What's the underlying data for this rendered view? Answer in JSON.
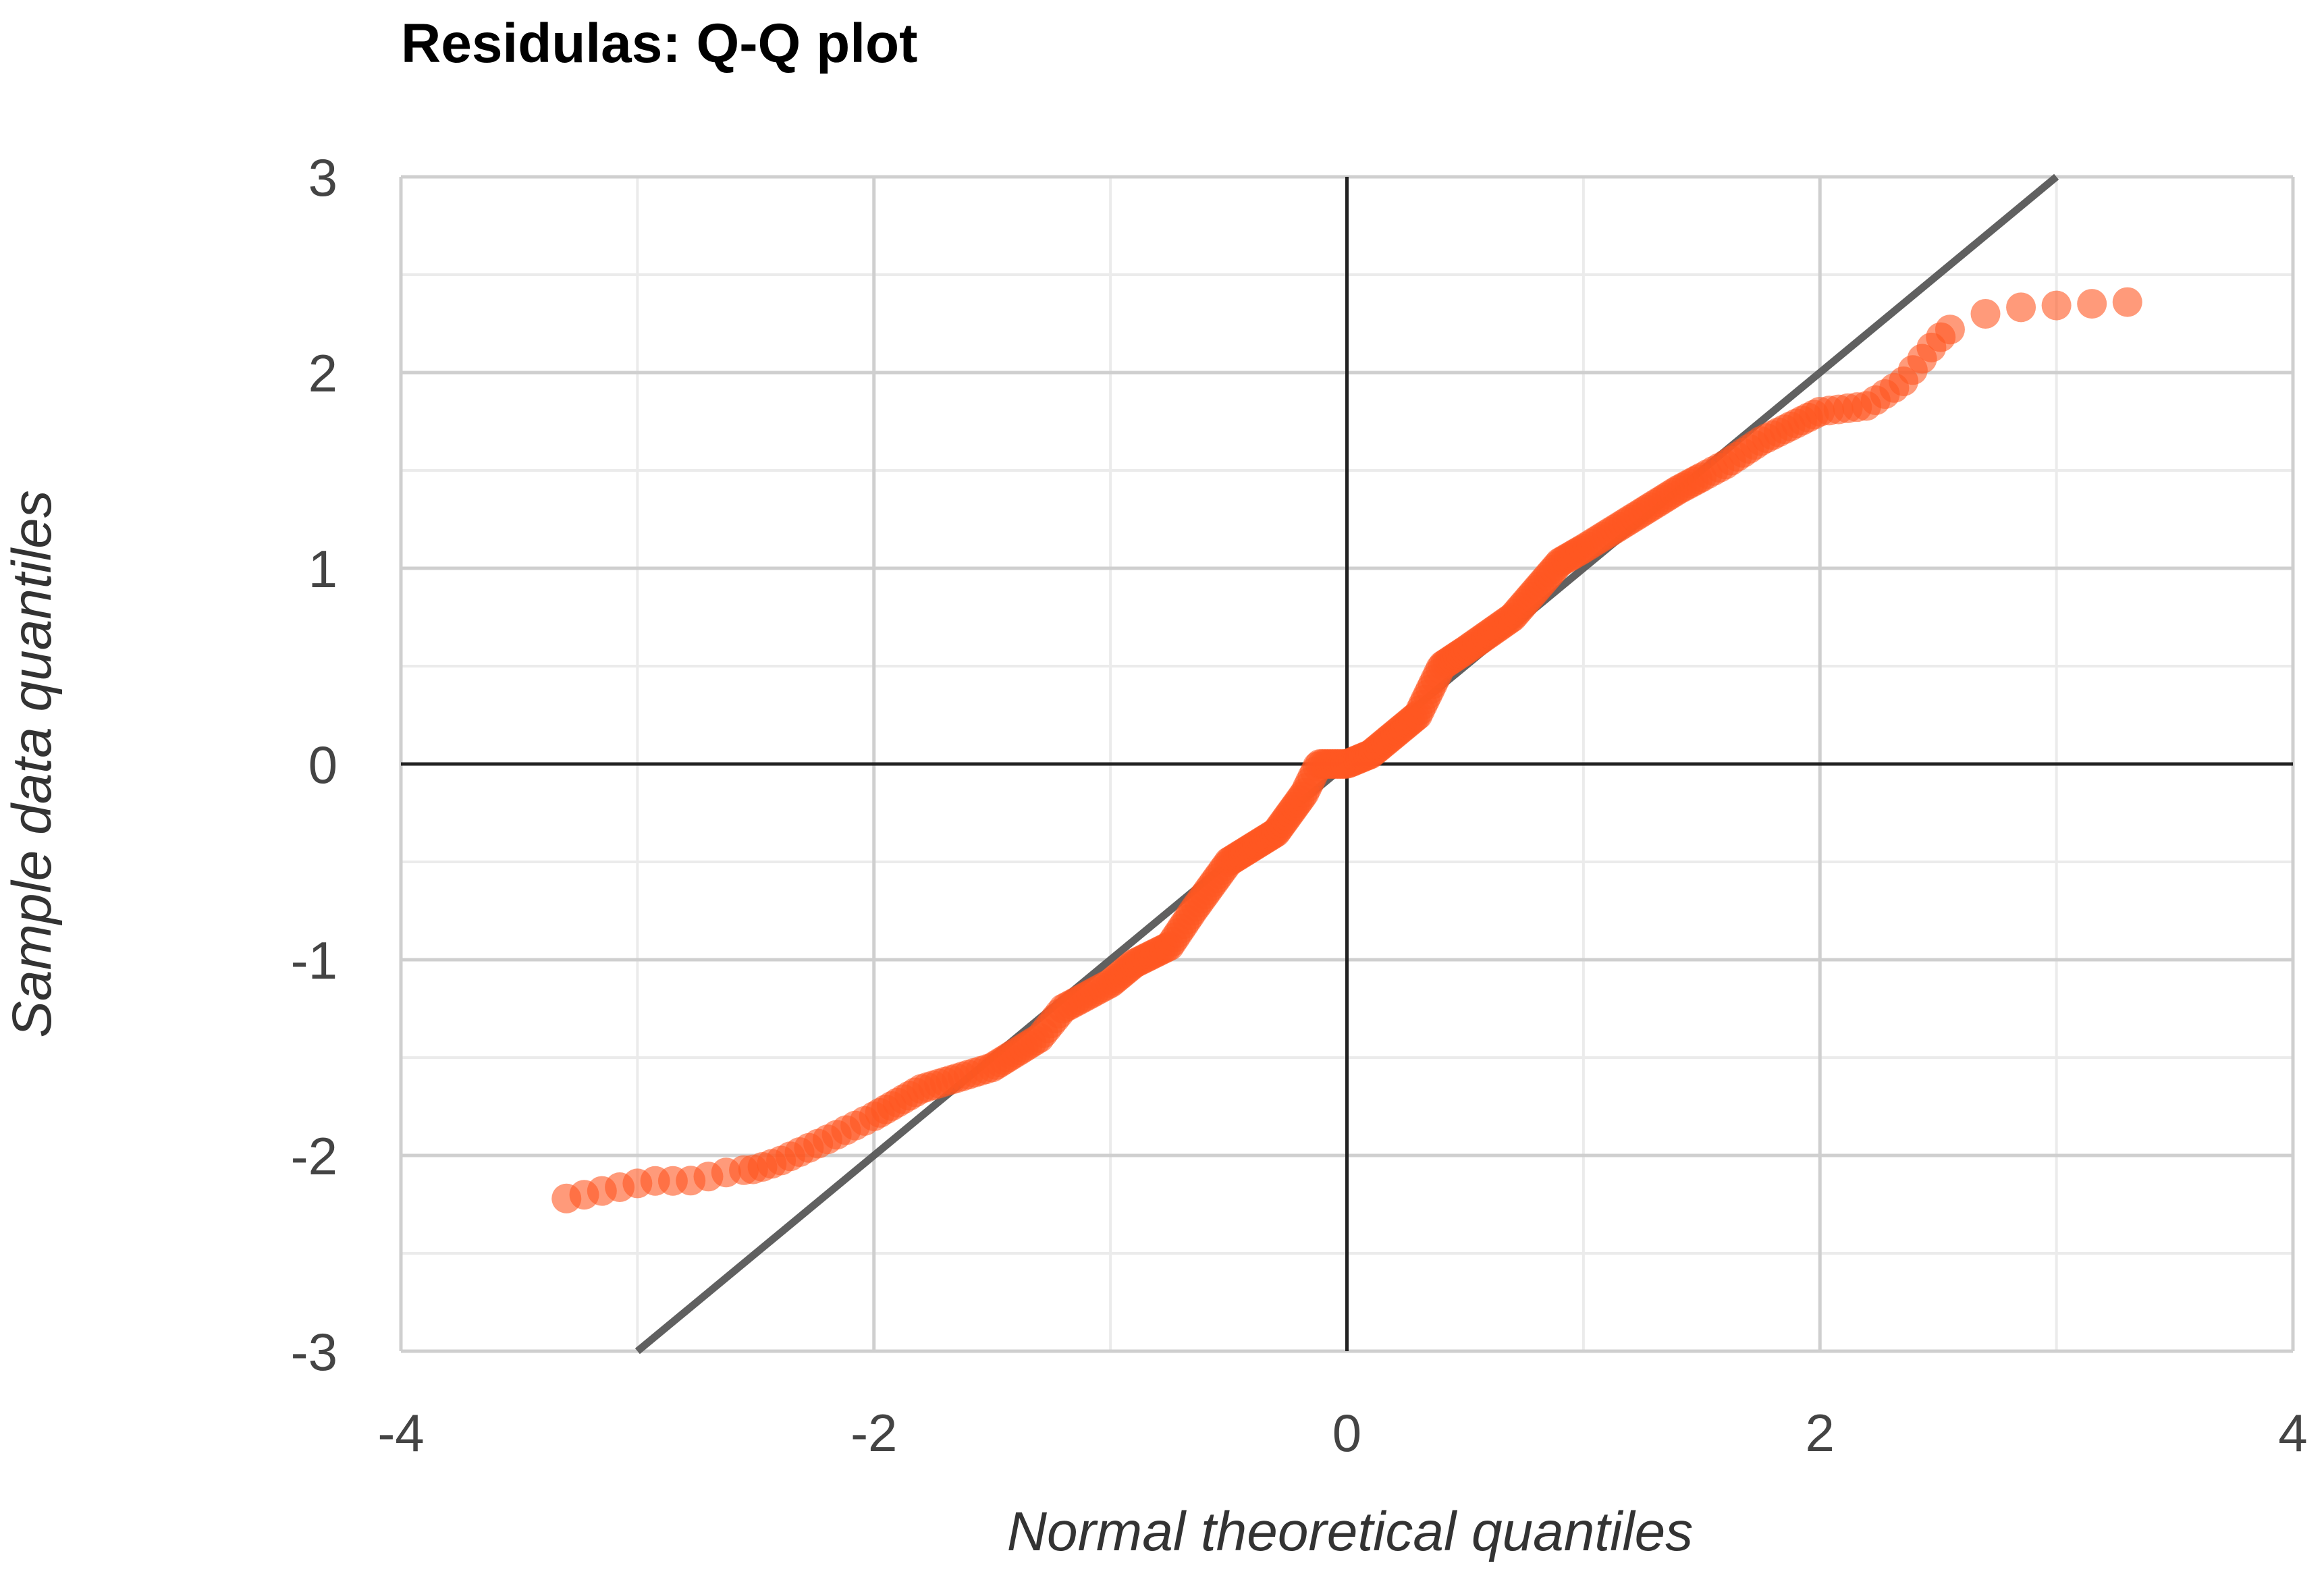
{
  "chart_data": {
    "type": "scatter",
    "title": "Residulas: Q-Q plot",
    "xlabel": "Normal theoretical quantiles",
    "ylabel": "Sample data quantiles",
    "xlim": [
      -4,
      4
    ],
    "ylim": [
      -3,
      3
    ],
    "x_ticks": [
      -4,
      -2,
      0,
      2,
      4
    ],
    "y_ticks": [
      3,
      2,
      1,
      0,
      -1,
      -2,
      -3
    ],
    "x_tick_labels": [
      "-4",
      "-2",
      "0",
      "2",
      "4"
    ],
    "y_tick_labels": [
      "3",
      "2",
      "1",
      "0",
      "-1",
      "-2",
      "-3"
    ],
    "grid": true,
    "legend": "none",
    "point_color": "#FF5722",
    "point_opacity": 0.6,
    "reference_line": {
      "slope": 1,
      "intercept": 0,
      "color": "#606060"
    },
    "x_segments": [
      [
        -3.3,
        -2.55,
        10
      ],
      [
        -2.55,
        -2.0,
        14
      ],
      [
        -2.0,
        -1.5,
        20
      ],
      [
        -1.5,
        -1.0,
        30
      ],
      [
        -1.0,
        -0.5,
        40
      ],
      [
        -0.5,
        -0.2,
        30
      ],
      [
        -0.2,
        0.1,
        28
      ],
      [
        0.1,
        0.5,
        38
      ],
      [
        0.5,
        1.0,
        40
      ],
      [
        1.0,
        1.5,
        30
      ],
      [
        1.5,
        2.0,
        20
      ],
      [
        2.0,
        2.55,
        14
      ],
      [
        2.55,
        3.3,
        6
      ]
    ],
    "curve": [
      [
        -3.3,
        -2.22
      ],
      [
        -2.95,
        -2.13
      ],
      [
        -2.78,
        -2.13
      ],
      [
        -2.6,
        -2.08
      ],
      [
        -2.5,
        -2.07
      ],
      [
        -2.4,
        -2.03
      ],
      [
        -2.2,
        -1.92
      ],
      [
        -2.0,
        -1.8
      ],
      [
        -1.8,
        -1.66
      ],
      [
        -1.5,
        -1.55
      ],
      [
        -1.3,
        -1.4
      ],
      [
        -1.2,
        -1.25
      ],
      [
        -1.0,
        -1.12
      ],
      [
        -0.9,
        -1.02
      ],
      [
        -0.75,
        -0.93
      ],
      [
        -0.65,
        -0.75
      ],
      [
        -0.5,
        -0.5
      ],
      [
        -0.3,
        -0.35
      ],
      [
        -0.18,
        -0.15
      ],
      [
        -0.12,
        0.0
      ],
      [
        0.0,
        0.0
      ],
      [
        0.1,
        0.05
      ],
      [
        0.3,
        0.25
      ],
      [
        0.4,
        0.5
      ],
      [
        0.5,
        0.58
      ],
      [
        0.7,
        0.75
      ],
      [
        0.9,
        1.03
      ],
      [
        1.0,
        1.1
      ],
      [
        1.2,
        1.25
      ],
      [
        1.4,
        1.4
      ],
      [
        1.6,
        1.53
      ],
      [
        1.75,
        1.65
      ],
      [
        2.0,
        1.8
      ],
      [
        2.2,
        1.83
      ],
      [
        2.35,
        1.95
      ],
      [
        2.5,
        2.17
      ],
      [
        2.6,
        2.27
      ],
      [
        2.8,
        2.33
      ],
      [
        2.95,
        2.34
      ],
      [
        3.3,
        2.36
      ]
    ]
  }
}
